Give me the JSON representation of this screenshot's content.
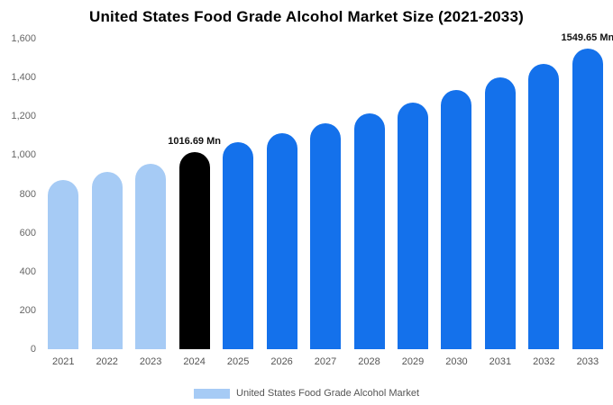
{
  "title": "United States Food Grade Alcohol Market Size (2021-2033)",
  "legend": {
    "label": "United States Food Grade Alcohol Market",
    "swatch_color": "#A6CBF5"
  },
  "colors": {
    "light_blue": "#A6CBF5",
    "bright_blue": "#1471EB",
    "black": "#000000",
    "axis_text": "#666666"
  },
  "chart_data": {
    "type": "bar",
    "title": "United States Food Grade Alcohol Market Size (2021-2033)",
    "categories": [
      "2021",
      "2022",
      "2023",
      "2024",
      "2025",
      "2026",
      "2027",
      "2028",
      "2029",
      "2030",
      "2031",
      "2032",
      "2033"
    ],
    "values": [
      872,
      915,
      955,
      1016.69,
      1065,
      1112,
      1163,
      1215,
      1271,
      1336,
      1400,
      1468,
      1549.65
    ],
    "bar_colors": [
      "#A6CBF5",
      "#A6CBF5",
      "#A6CBF5",
      "#000000",
      "#1471EB",
      "#1471EB",
      "#1471EB",
      "#1471EB",
      "#1471EB",
      "#1471EB",
      "#1471EB",
      "#1471EB",
      "#1471EB"
    ],
    "annotations": [
      {
        "category": "2024",
        "text": "1016.69 Mn"
      },
      {
        "category": "2033",
        "text": "1549.65 Mn"
      }
    ],
    "xlabel": "",
    "ylabel": "",
    "ylim": [
      0,
      1600
    ],
    "ytick_values": [
      0,
      200,
      400,
      600,
      800,
      1000,
      1200,
      1400,
      1600
    ],
    "ytick_labels": [
      "0",
      "200",
      "400",
      "600",
      "800",
      "1,000",
      "1,200",
      "1,400",
      "1,600"
    ],
    "grid": false,
    "legend_position": "bottom",
    "unit": "Mn"
  }
}
